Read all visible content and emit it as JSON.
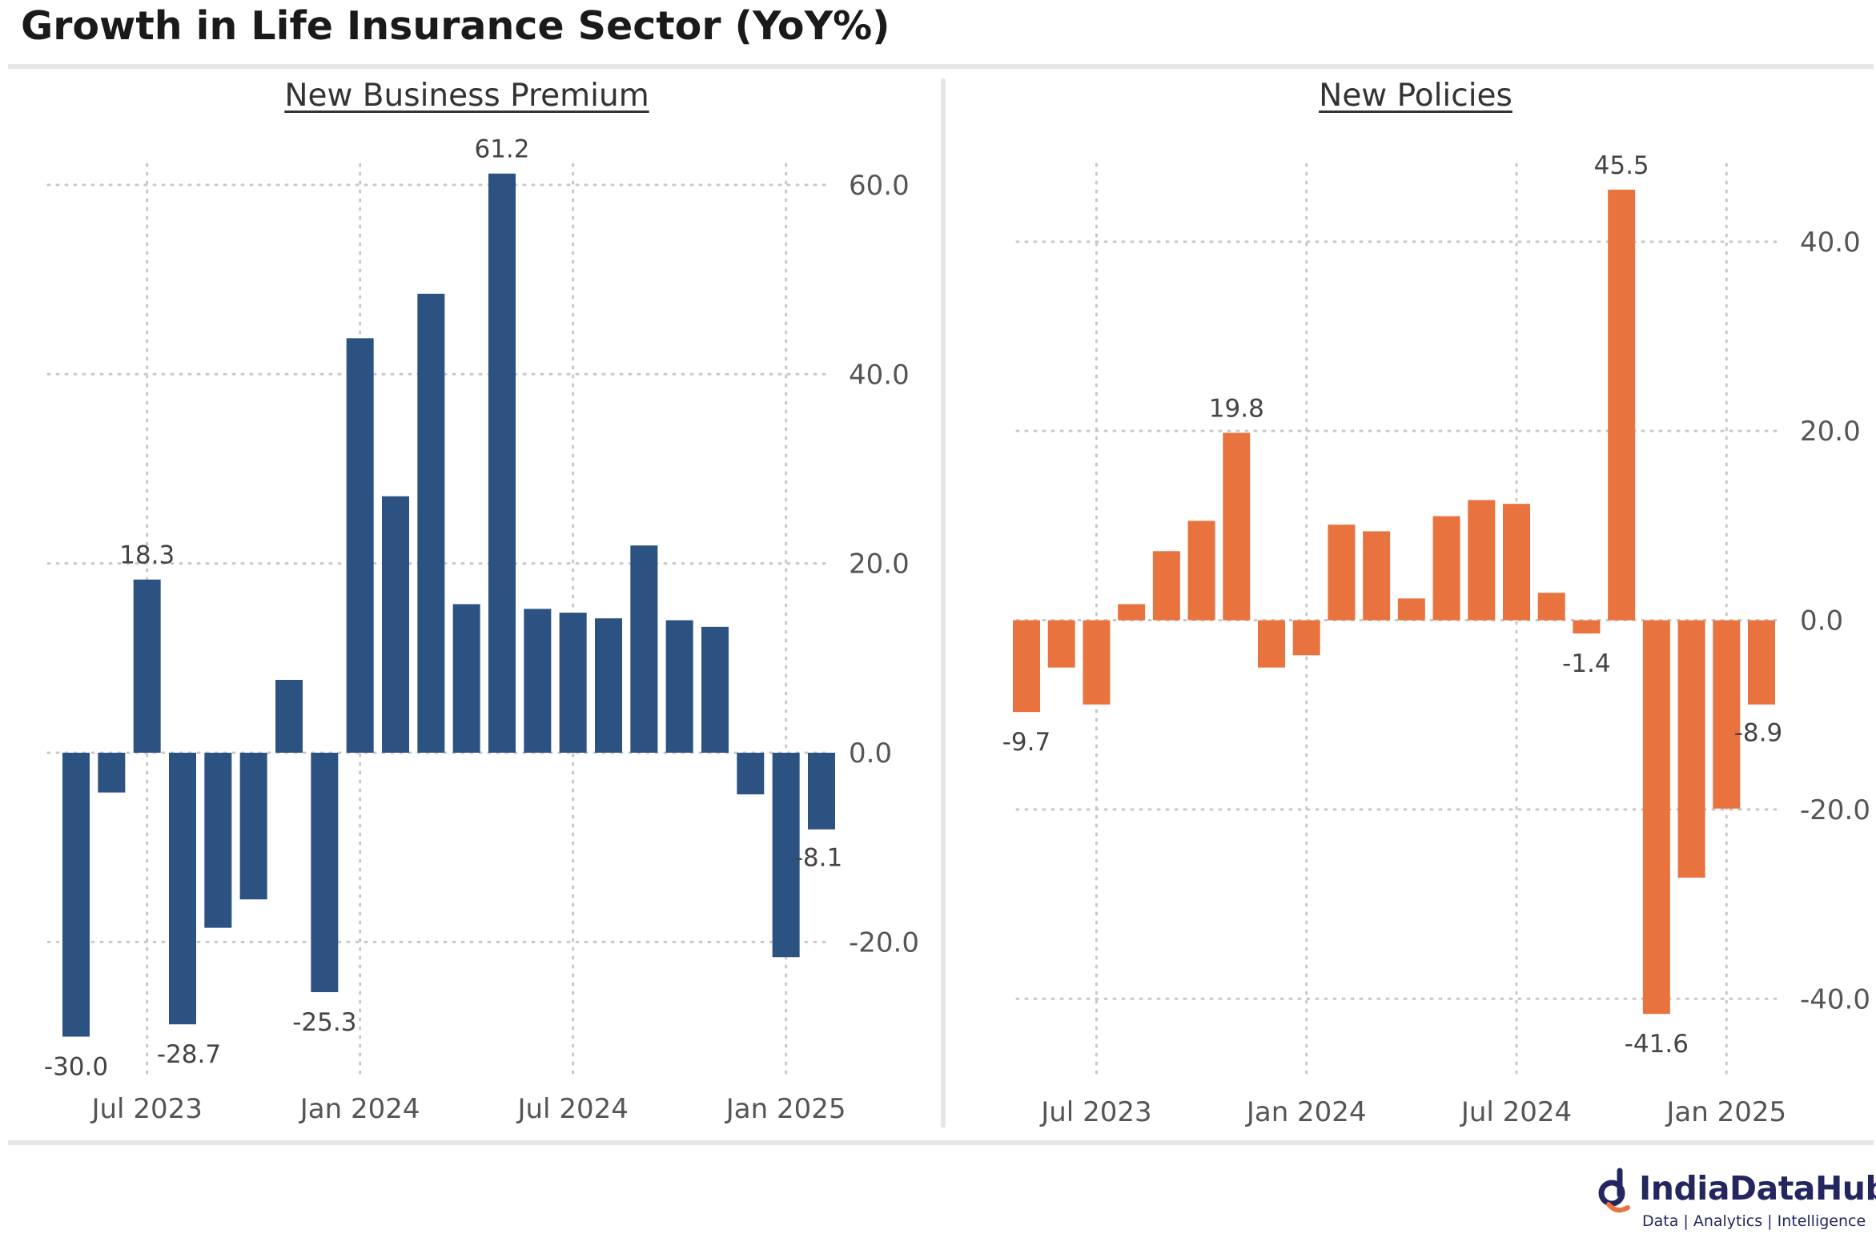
{
  "title": "Growth in Life Insurance Sector (YoY%)",
  "brand": {
    "name": "IndiaDataHub",
    "tagline": "Data | Analytics | Intelligence"
  },
  "colors": {
    "premium": "#2c5282",
    "policies": "#e8733f",
    "grid": "#c8c8c8",
    "tick": "#555555"
  },
  "chart_data": [
    {
      "type": "bar",
      "title": "New Business Premium",
      "x": [
        "2023-05",
        "2023-06",
        "2023-07",
        "2023-08",
        "2023-09",
        "2023-10",
        "2023-11",
        "2023-12",
        "2024-01",
        "2024-02",
        "2024-03",
        "2024-04",
        "2024-05",
        "2024-06",
        "2024-07",
        "2024-08",
        "2024-09",
        "2024-10",
        "2024-11",
        "2024-12",
        "2025-01",
        "2025-02"
      ],
      "values": [
        -30.0,
        -4.2,
        18.3,
        -28.7,
        -18.5,
        -15.5,
        7.7,
        -25.3,
        43.8,
        27.1,
        48.5,
        15.7,
        61.2,
        15.2,
        14.8,
        14.2,
        21.9,
        14.0,
        13.3,
        -4.4,
        -21.6,
        -8.1
      ],
      "data_labels": [
        {
          "index": 0,
          "text": "-30.0"
        },
        {
          "index": 2,
          "text": "18.3"
        },
        {
          "index": 3,
          "text": "-28.7"
        },
        {
          "index": 7,
          "text": "-25.3"
        },
        {
          "index": 12,
          "text": "61.2"
        },
        {
          "index": 21,
          "text": "-8.1"
        }
      ],
      "x_ticks": [
        "Jul 2023",
        "Jan 2024",
        "Jul 2024",
        "Jan 2025"
      ],
      "y_ticks": [
        "-20.0",
        "0.0",
        "20.0",
        "40.0",
        "60.0"
      ],
      "ylim": [
        -33,
        66
      ],
      "y_axis_side": "right",
      "grid": true
    },
    {
      "type": "bar",
      "title": "New Policies",
      "x": [
        "2023-05",
        "2023-06",
        "2023-07",
        "2023-08",
        "2023-09",
        "2023-10",
        "2023-11",
        "2023-12",
        "2024-01",
        "2024-02",
        "2024-03",
        "2024-04",
        "2024-05",
        "2024-06",
        "2024-07",
        "2024-08",
        "2024-09",
        "2024-10",
        "2024-11",
        "2024-12",
        "2025-01",
        "2025-02"
      ],
      "values": [
        -9.7,
        -5.0,
        -8.9,
        1.7,
        7.3,
        10.5,
        19.8,
        -5.0,
        -3.7,
        10.1,
        9.4,
        2.3,
        11.0,
        12.7,
        12.3,
        2.9,
        -1.4,
        45.5,
        -41.6,
        -27.2,
        -19.9,
        -8.9
      ],
      "data_labels": [
        {
          "index": 0,
          "text": "-9.7"
        },
        {
          "index": 6,
          "text": "19.8"
        },
        {
          "index": 16,
          "text": "-1.4"
        },
        {
          "index": 17,
          "text": "45.5"
        },
        {
          "index": 18,
          "text": "-41.6"
        },
        {
          "index": 21,
          "text": "-8.9"
        }
      ],
      "x_ticks": [
        "Jul 2023",
        "Jan 2024",
        "Jul 2024",
        "Jan 2025"
      ],
      "y_ticks": [
        "-40.0",
        "-20.0",
        "0.0",
        "20.0",
        "40.0"
      ],
      "ylim": [
        -47,
        52
      ],
      "y_axis_side": "right",
      "grid": true
    }
  ]
}
